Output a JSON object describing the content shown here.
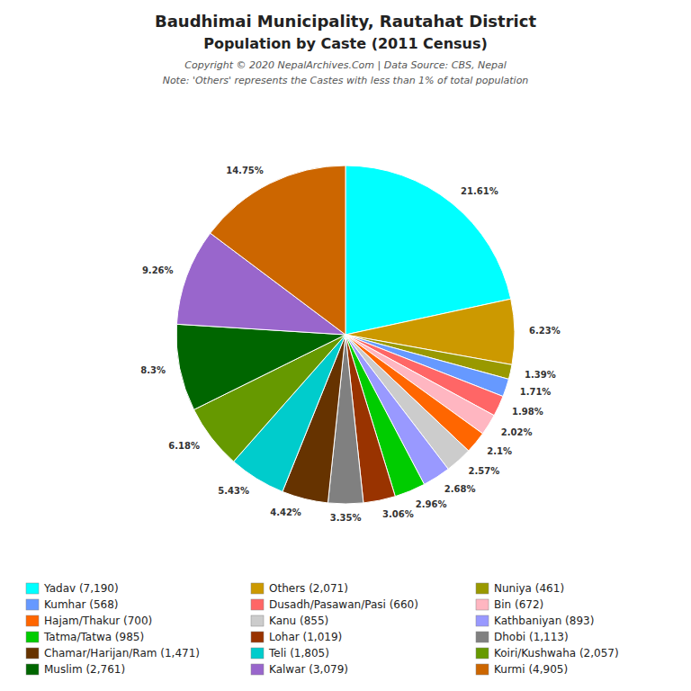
{
  "chart_data": {
    "type": "pie",
    "title": "Baudhimai Municipality, Rautahat District",
    "subtitle": "Population by Caste (2011 Census)",
    "annotations": [
      "Copyright © 2020 NepalArchives.Com | Data Source: CBS, Nepal",
      "Note: 'Others' represents the Castes with less than 1% of total population"
    ],
    "categories": [
      "Yadav (7,190)",
      "Others (2,071)",
      "Nuniya (461)",
      "Kumhar (568)",
      "Dusadh/Pasawan/Pasi (660)",
      "Bin (672)",
      "Hajam/Thakur (700)",
      "Kanu (855)",
      "Kathbaniyan (893)",
      "Tatma/Tatwa (985)",
      "Lohar (1,019)",
      "Dhobi (1,113)",
      "Chamar/Harijan/Ram (1,471)",
      "Teli (1,805)",
      "Koiri/Kushwaha (2,057)",
      "Muslim (2,761)",
      "Kalwar (3,079)",
      "Kurmi (4,905)"
    ],
    "values": [
      21.61,
      6.23,
      1.39,
      1.71,
      1.98,
      2.02,
      2.1,
      2.57,
      2.68,
      2.96,
      3.06,
      3.35,
      4.42,
      5.43,
      6.18,
      8.3,
      9.26,
      14.75
    ],
    "value_labels": [
      "21.61%",
      "6.23%",
      "1.39%",
      "1.71%",
      "1.98%",
      "2.02%",
      "2.1%",
      "2.57%",
      "2.68%",
      "2.96%",
      "3.06%",
      "3.35%",
      "4.42%",
      "5.43%",
      "6.18%",
      "8.3%",
      "9.26%",
      "14.75%"
    ],
    "colors": [
      "#00FFFF",
      "#CC9900",
      "#999900",
      "#6699FF",
      "#FF6666",
      "#FFB6C1",
      "#FF6600",
      "#CCCCCC",
      "#9999FF",
      "#00CC00",
      "#993300",
      "#808080",
      "#663300",
      "#00CCCC",
      "#669900",
      "#006600",
      "#9966CC",
      "#CC6600"
    ],
    "data_labels": true,
    "legend": "bottom"
  }
}
